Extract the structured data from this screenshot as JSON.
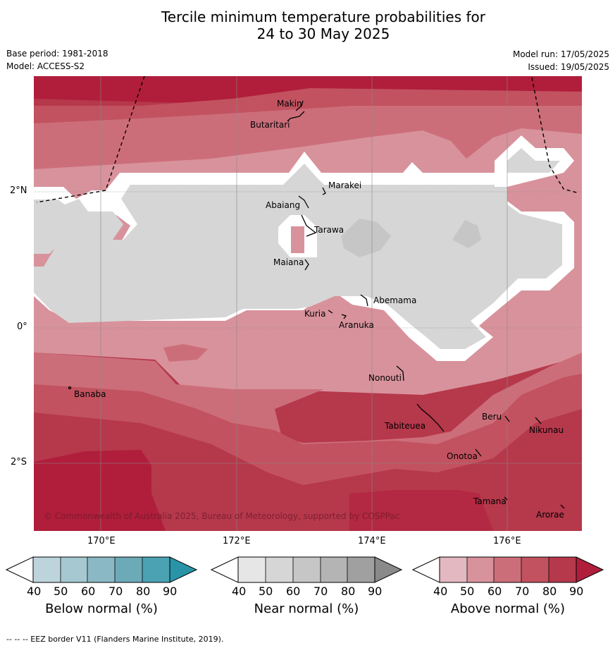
{
  "header": {
    "title_line1": "Tercile minimum temperature probabilities for",
    "title_line2": "24 to 30 May 2025",
    "base_period": "Base period: 1981-2018",
    "model": "Model: ACCESS-S2",
    "model_run": "Model run: 17/05/2025",
    "issued": "Issued: 19/05/2025"
  },
  "map": {
    "lat_labels": [
      "2°N",
      "0°",
      "2°S"
    ],
    "lon_labels": [
      "170°E",
      "172°E",
      "174°E",
      "176°E"
    ],
    "copyright": "© Commonwealth of Australia 2025, Bureau of Meteorology, supported by COSPPac",
    "islands": [
      "Makin",
      "Butaritari",
      "Marakei",
      "Abaiang",
      "Tarawa",
      "Maiana",
      "Abemama",
      "Kuria",
      "Aranuka",
      "Nonouti",
      "Banaba",
      "Tabiteuea",
      "Beru",
      "Nikunau",
      "Onotoa",
      "Tamana",
      "Arorae"
    ]
  },
  "colorbars": [
    {
      "title": "Below normal (%)",
      "ticks": [
        "40",
        "50",
        "60",
        "70",
        "80",
        "90"
      ],
      "colors": [
        "#bed4dc",
        "#a6c8d0",
        "#8ab8c4",
        "#6caab8",
        "#4aa2b2",
        "#2994a8"
      ]
    },
    {
      "title": "Near normal (%)",
      "ticks": [
        "40",
        "50",
        "60",
        "70",
        "80",
        "90"
      ],
      "colors": [
        "#e6e6e6",
        "#d6d6d6",
        "#c6c6c6",
        "#b4b4b4",
        "#a0a0a0",
        "#8a8a8a"
      ]
    },
    {
      "title": "Above normal (%)",
      "ticks": [
        "40",
        "50",
        "60",
        "70",
        "80",
        "90"
      ],
      "colors": [
        "#e4b8c0",
        "#d8929c",
        "#cc6e7a",
        "#c2525f",
        "#b6384b",
        "#b01e3c"
      ]
    }
  ],
  "footnote": "--  --  -- EEZ border V11 (Flanders Marine Institute, 2019)."
}
